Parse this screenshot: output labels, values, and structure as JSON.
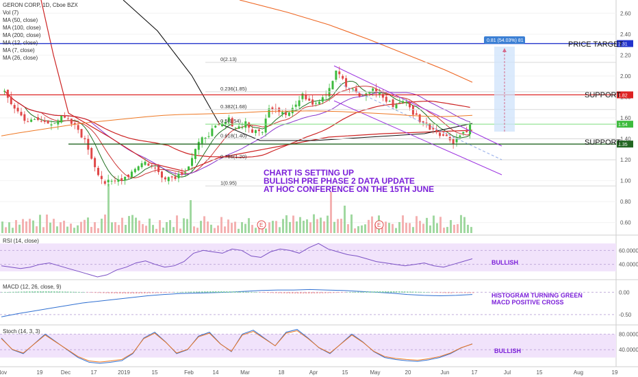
{
  "legend": {
    "title": "GERON CORP, 1D, Cboe BZX",
    "lines": [
      "Vol (7)",
      "MA (50, close)",
      "MA (100, close)",
      "MA (200, close)",
      "MA (12, close)",
      "MA (7, close)",
      "MA (26, close)"
    ]
  },
  "colors": {
    "up": "#3dbb3d",
    "down": "#e04848",
    "ma50": "#cc2222",
    "ma100": "#111111",
    "ma200": "#ee6622",
    "ma12": "#cc3333",
    "ma7": "#1e6e1e",
    "ma26": "#8833cc",
    "channel": "#9b30e0",
    "note": "#7b1fd9",
    "price_target": "#2233cc",
    "support": "#dd2222",
    "support2": "#226622"
  },
  "labels": {
    "price_target": "PRICE TARGET",
    "support_upper": "SUPPORT",
    "support_lower": "SUPPORT",
    "measure_box": "0.81 (54.03%) 81",
    "note_main_1": "CHART IS SETTING UP",
    "note_main_2": "BULLISH PRE PHASE 2 DATA UPDATE",
    "note_main_3": "AT HOC CONFERENCE ON THE 15TH JUNE",
    "rsi_note": "BULLISH",
    "macd_note_1": "HISTOGRAM TURNING GREEN",
    "macd_note_2": "MACD POSITIVE CROSS",
    "stoch_note": "BULLISH",
    "rsi_title": "RSI (14, close)",
    "macd_title": "MACD (12, 26, close, 9)",
    "stoch_title": "Stoch (14, 3, 3)",
    "earnings_marker": "E"
  },
  "chart_data": [
    {
      "type": "line",
      "panel": "price",
      "y_ticks": [
        "2.60",
        "2.40",
        "2.20",
        "2.00",
        "1.80",
        "1.60",
        "1.40",
        "1.20",
        "1.00",
        "0.80",
        "0.60"
      ],
      "ylim": [
        0.5,
        2.7
      ],
      "x_ticks": [
        "Nov",
        "19",
        "Dec",
        "17",
        "2019",
        "15",
        "Feb",
        "14",
        "Mar",
        "18",
        "Apr",
        "15",
        "May",
        "20",
        "Jun",
        "17",
        "Jul",
        "15",
        "Aug",
        "19"
      ],
      "fib_levels": [
        {
          "label": "0(2.13)",
          "value": 2.13
        },
        {
          "label": "0.236(1.85)",
          "value": 1.85
        },
        {
          "label": "0.382(1.68)",
          "value": 1.68
        },
        {
          "label": "0.5(1.54)",
          "value": 1.54
        },
        {
          "label": "0.618(1.40)",
          "value": 1.4
        },
        {
          "label": "0.786(1.20)",
          "value": 1.2
        },
        {
          "label": "1(0.95)",
          "value": 0.95
        }
      ],
      "horizontal_levels": [
        {
          "name": "PRICE TARGET",
          "value": 2.31,
          "price_tag": "2.31"
        },
        {
          "name": "SUPPORT",
          "value": 1.82,
          "price_tag": "1.82"
        },
        {
          "name": "SUPPORT",
          "value": 1.35,
          "price_tag": "1.35"
        }
      ],
      "last_price": "1.54",
      "close_path": [
        1.83,
        1.72,
        1.62,
        1.56,
        1.58,
        1.55,
        1.57,
        1.6,
        1.55,
        1.48,
        1.32,
        1.12,
        0.98,
        0.98,
        1.02,
        1.06,
        1.15,
        1.18,
        1.12,
        1.05,
        1.03,
        1.06,
        1.12,
        1.3,
        1.42,
        1.48,
        1.52,
        1.58,
        1.5,
        1.56,
        1.45,
        1.48,
        1.72,
        1.68,
        1.65,
        1.72,
        1.82,
        1.75,
        1.78,
        1.88,
        2.08,
        1.9,
        1.85,
        1.8,
        1.87,
        1.85,
        1.75,
        1.72,
        1.78,
        1.66,
        1.58,
        1.52,
        1.48,
        1.42,
        1.38,
        1.45,
        1.52
      ]
    },
    {
      "type": "line",
      "panel": "rsi",
      "y_ticks": [
        "60.0000",
        "40.0000"
      ],
      "ylim": [
        20,
        80
      ],
      "values": [
        38,
        36,
        34,
        36,
        40,
        42,
        38,
        34,
        30,
        26,
        22,
        25,
        32,
        36,
        42,
        45,
        40,
        36,
        38,
        44,
        56,
        60,
        58,
        56,
        62,
        60,
        52,
        50,
        58,
        62,
        60,
        56,
        64,
        70,
        62,
        58,
        54,
        52,
        48,
        44,
        42,
        40,
        38,
        40,
        42,
        38,
        36,
        40,
        44,
        48
      ]
    },
    {
      "type": "line",
      "panel": "macd",
      "y_ticks": [
        "0.00",
        "-0.50"
      ],
      "ylim": [
        -0.7,
        0.25
      ],
      "values": [
        -0.55,
        -0.48,
        -0.42,
        -0.36,
        -0.3,
        -0.24,
        -0.2,
        -0.16,
        -0.12,
        -0.08,
        -0.05,
        -0.03,
        -0.02,
        -0.01,
        0,
        0.02,
        0.04,
        0.05,
        0.05,
        0.06,
        0.05,
        0.04,
        0.02,
        0,
        -0.02,
        -0.05,
        -0.07,
        -0.08,
        -0.07,
        -0.05
      ]
    },
    {
      "type": "line",
      "panel": "stoch",
      "y_ticks": [
        "80.0000",
        "40.0000"
      ],
      "ylim": [
        0,
        100
      ],
      "values": [
        70,
        40,
        30,
        55,
        80,
        60,
        40,
        20,
        8,
        5,
        8,
        12,
        30,
        70,
        85,
        60,
        30,
        40,
        75,
        85,
        55,
        35,
        80,
        90,
        70,
        50,
        85,
        92,
        70,
        45,
        30,
        55,
        80,
        60,
        35,
        20,
        15,
        12,
        10,
        14,
        20,
        30,
        45,
        55
      ]
    }
  ]
}
